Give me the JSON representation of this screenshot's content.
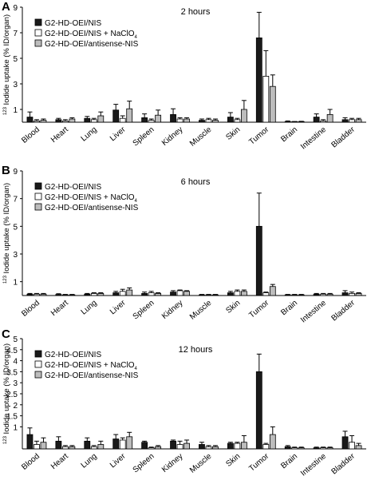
{
  "figure": {
    "ylabel_sup": "123",
    "ylabel_main": " Iodide uptake (% ID/organ)"
  },
  "legend": {
    "items": [
      {
        "label": "G2-HD-OEI/NIS",
        "color": "#1a1a1a"
      },
      {
        "label": "G2-HD-OEI/NIS + NaClO",
        "sub": "4",
        "color": "#ffffff"
      },
      {
        "label": "G2-HD-OEI/antisense-NIS",
        "color": "#bdbdbd"
      }
    ]
  },
  "chart_data": [
    {
      "type": "bar",
      "panel": "A",
      "title": "2 hours",
      "categories": [
        "Blood",
        "Heart",
        "Lung",
        "Liver",
        "Spleen",
        "Kidney",
        "Muscle",
        "Skin",
        "Tumor",
        "Brain",
        "Intestine",
        "Bladder"
      ],
      "ylim": [
        0,
        9
      ],
      "yticks": [
        1,
        3,
        5,
        7,
        9
      ],
      "series": [
        {
          "name": "G2-HD-OEI/NIS",
          "color": "#1a1a1a",
          "values": [
            0.4,
            0.2,
            0.3,
            0.95,
            0.35,
            0.6,
            0.15,
            0.4,
            6.6,
            0.05,
            0.4,
            0.2
          ],
          "errors": [
            0.4,
            0.1,
            0.15,
            0.45,
            0.3,
            0.45,
            0.1,
            0.35,
            2.0,
            0.05,
            0.25,
            0.15
          ]
        },
        {
          "name": "G2-HD-OEI/NIS + NaClO4",
          "color": "#ffffff",
          "values": [
            0.1,
            0.1,
            0.2,
            0.3,
            0.15,
            0.25,
            0.2,
            0.2,
            3.6,
            0.03,
            0.1,
            0.2
          ],
          "errors": [
            0.1,
            0.1,
            0.1,
            0.2,
            0.1,
            0.1,
            0.1,
            0.1,
            2.0,
            0.02,
            0.1,
            0.1
          ]
        },
        {
          "name": "G2-HD-OEI/antisense-NIS",
          "color": "#bdbdbd",
          "values": [
            0.15,
            0.25,
            0.5,
            1.05,
            0.55,
            0.25,
            0.15,
            1.0,
            2.8,
            0.05,
            0.6,
            0.2
          ],
          "errors": [
            0.1,
            0.1,
            0.3,
            0.6,
            0.4,
            0.1,
            0.1,
            0.7,
            0.9,
            0.02,
            0.4,
            0.1
          ]
        }
      ]
    },
    {
      "type": "bar",
      "panel": "B",
      "title": "6 hours",
      "categories": [
        "Blood",
        "Heart",
        "Lung",
        "Liver",
        "Spleen",
        "Kidney",
        "Muscle",
        "Skin",
        "Tumor",
        "Brain",
        "Intestine",
        "Bladder"
      ],
      "ylim": [
        0,
        9
      ],
      "yticks": [
        1,
        3,
        5,
        7,
        9
      ],
      "series": [
        {
          "name": "G2-HD-OEI/NIS",
          "color": "#1a1a1a",
          "values": [
            0.1,
            0.08,
            0.1,
            0.2,
            0.15,
            0.25,
            0.05,
            0.2,
            5.0,
            0.05,
            0.1,
            0.2
          ],
          "errors": [
            0.05,
            0.05,
            0.05,
            0.1,
            0.1,
            0.1,
            0.03,
            0.1,
            2.4,
            0.03,
            0.05,
            0.15
          ]
        },
        {
          "name": "G2-HD-OEI/NIS + NaClO4",
          "color": "#ffffff",
          "values": [
            0.1,
            0.05,
            0.15,
            0.3,
            0.2,
            0.35,
            0.05,
            0.3,
            0.2,
            0.05,
            0.1,
            0.15
          ],
          "errors": [
            0.05,
            0.03,
            0.05,
            0.15,
            0.1,
            0.05,
            0.03,
            0.1,
            0.05,
            0.03,
            0.05,
            0.1
          ]
        },
        {
          "name": "G2-HD-OEI/antisense-NIS",
          "color": "#bdbdbd",
          "values": [
            0.1,
            0.05,
            0.15,
            0.4,
            0.15,
            0.3,
            0.05,
            0.3,
            0.65,
            0.05,
            0.1,
            0.15
          ],
          "errors": [
            0.05,
            0.03,
            0.05,
            0.15,
            0.05,
            0.05,
            0.03,
            0.1,
            0.15,
            0.03,
            0.05,
            0.05
          ]
        }
      ]
    },
    {
      "type": "bar",
      "panel": "C",
      "title": "12 hours",
      "categories": [
        "Blood",
        "Heart",
        "Lung",
        "Liver",
        "Spleen",
        "Kidney",
        "Muscle",
        "Skin",
        "Tumor",
        "Brain",
        "Intestine",
        "Bladder"
      ],
      "ylim": [
        0,
        5
      ],
      "yticks": [
        1,
        1.5,
        2,
        2.5,
        3,
        3.5,
        4,
        4.5,
        5
      ],
      "series": [
        {
          "name": "G2-HD-OEI/NIS",
          "color": "#1a1a1a",
          "values": [
            0.65,
            0.35,
            0.35,
            0.45,
            0.3,
            0.35,
            0.2,
            0.25,
            3.5,
            0.1,
            0.05,
            0.55
          ],
          "errors": [
            0.3,
            0.2,
            0.15,
            0.2,
            0.05,
            0.05,
            0.1,
            0.05,
            0.8,
            0.05,
            0.03,
            0.25
          ]
        },
        {
          "name": "G2-HD-OEI/NIS + NaClO4",
          "color": "#ffffff",
          "values": [
            0.2,
            0.1,
            0.1,
            0.4,
            0.05,
            0.2,
            0.1,
            0.25,
            0.2,
            0.05,
            0.05,
            0.3
          ],
          "errors": [
            0.15,
            0.05,
            0.05,
            0.1,
            0.03,
            0.15,
            0.05,
            0.05,
            0.05,
            0.03,
            0.03,
            0.3
          ]
        },
        {
          "name": "G2-HD-OEI/antisense-NIS",
          "color": "#bdbdbd",
          "values": [
            0.3,
            0.1,
            0.2,
            0.55,
            0.1,
            0.25,
            0.1,
            0.3,
            0.65,
            0.05,
            0.05,
            0.15
          ],
          "errors": [
            0.2,
            0.05,
            0.15,
            0.2,
            0.05,
            0.15,
            0.05,
            0.3,
            0.35,
            0.03,
            0.03,
            0.1
          ]
        }
      ]
    }
  ]
}
